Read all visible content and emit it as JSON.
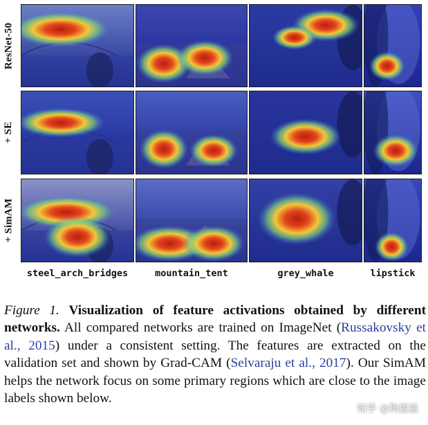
{
  "figure": {
    "row_labels": [
      "ResNet-50",
      "+ SE",
      "+ SimAM"
    ],
    "column_labels": [
      "steel_arch_bridges",
      "mountain_tent",
      "grey_whale",
      "lipstick"
    ]
  },
  "caption": {
    "figure_label": "Figure 1.",
    "bold_title": "Visualization of feature activations obtained by different networks.",
    "text_1": "All compared networks are trained on ImageNet (",
    "cite_1": "Russakovsky et al., 2015",
    "text_2": ") under a consistent setting. The features are extracted on the validation set and shown by Grad-CAM (",
    "cite_2": "Selvaraju et al., 2017",
    "text_3": "). Our SimAM helps the network focus on some primary regions which are close to the image labels shown below."
  },
  "watermark": "知乎 @狗蛋酱",
  "colors": {
    "citation": "#2a3f9e",
    "heatmap_hot": "#d42a1a",
    "heatmap_cool": "#2a35c8"
  }
}
